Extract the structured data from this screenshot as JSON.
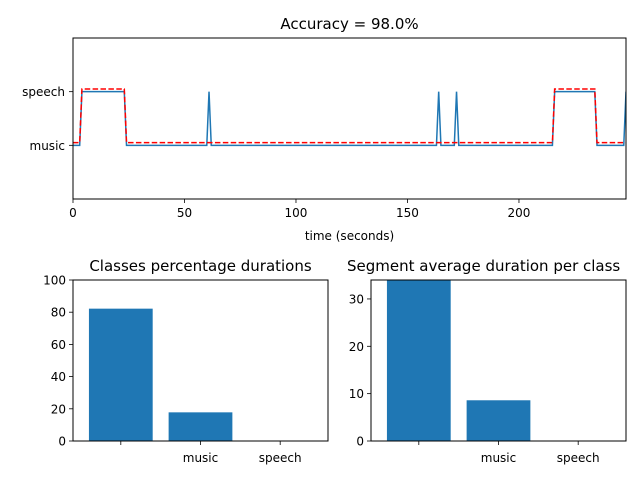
{
  "chart_data": [
    {
      "type": "line",
      "title": "Accuracy = 98.0%",
      "xlabel": "time (seconds)",
      "ylabel": "",
      "xlim": [
        0,
        248
      ],
      "ylim": [
        -1,
        2
      ],
      "x_ticks": [
        0,
        50,
        100,
        150,
        200
      ],
      "y_ticks": [
        {
          "value": 0,
          "label": "music"
        },
        {
          "value": 1,
          "label": "speech"
        }
      ],
      "grid": false,
      "legend": "none",
      "series": [
        {
          "style": "solid",
          "color": "#1f77b4",
          "x": [
            0,
            3,
            4,
            23,
            24,
            60,
            61,
            62,
            163,
            164,
            165,
            171,
            172,
            173,
            215,
            216,
            234,
            235,
            247,
            248
          ],
          "y": [
            0,
            0,
            1,
            1,
            0,
            0,
            1,
            0,
            0,
            1,
            0,
            0,
            1,
            0,
            0,
            1,
            1,
            0,
            0,
            1
          ]
        },
        {
          "style": "dashed",
          "color": "#ff0000",
          "x": [
            0,
            3,
            4,
            23,
            24,
            215,
            216,
            234,
            235,
            248
          ],
          "y": [
            0.05,
            0.05,
            1.05,
            1.05,
            0.05,
            0.05,
            1.05,
            1.05,
            0.05,
            0.05
          ]
        }
      ]
    },
    {
      "type": "bar",
      "title": "Classes percentage durations",
      "categories": [
        "",
        "music",
        "speech"
      ],
      "values": [
        82.2,
        17.8,
        0
      ],
      "xlim": [
        -0.6,
        2.6
      ],
      "ylim": [
        0,
        100
      ],
      "y_ticks": [
        0,
        20,
        40,
        60,
        80,
        100
      ],
      "color": "#1f77b4"
    },
    {
      "type": "bar",
      "title": "Segment average duration per class",
      "categories": [
        "",
        "music",
        "speech"
      ],
      "values": [
        34,
        8.6,
        0
      ],
      "xlim": [
        -0.6,
        2.6
      ],
      "ylim": [
        0,
        34
      ],
      "y_ticks": [
        0,
        10,
        20,
        30
      ],
      "color": "#1f77b4"
    }
  ]
}
